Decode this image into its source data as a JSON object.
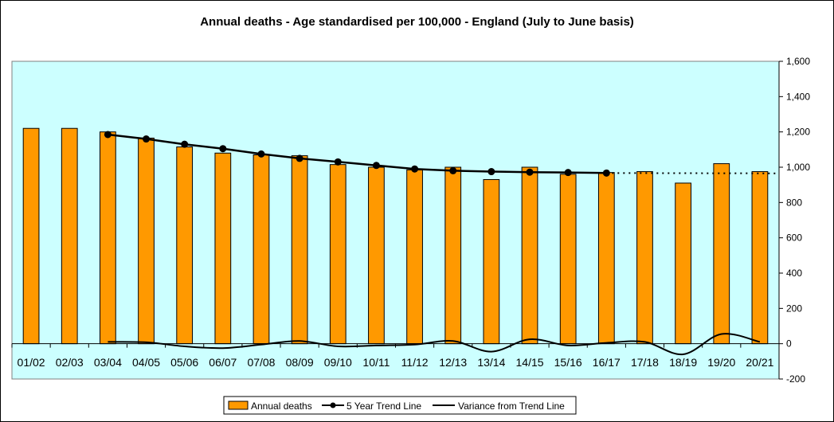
{
  "chart_data": {
    "type": "bar",
    "title": "Annual deaths - Age standardised per 100,000 - England (July to June basis)",
    "categories": [
      "01/02",
      "02/03",
      "03/04",
      "04/05",
      "05/06",
      "06/07",
      "07/08",
      "08/09",
      "09/10",
      "10/11",
      "11/12",
      "12/13",
      "13/14",
      "14/15",
      "15/16",
      "16/17",
      "17/18",
      "18/19",
      "19/20",
      "20/21"
    ],
    "ylim": [
      -200,
      1600
    ],
    "yticks": [
      -200,
      0,
      200,
      400,
      600,
      800,
      1000,
      1200,
      1400,
      1600
    ],
    "ytick_labels": [
      "-200",
      "0",
      "200",
      "400",
      "600",
      "800",
      "1,000",
      "1,200",
      "1,400",
      "1,600"
    ],
    "series": [
      {
        "name": "Annual deaths",
        "kind": "bar",
        "color": "#ff9900",
        "values": [
          1220,
          1220,
          1200,
          1165,
          1115,
          1080,
          1070,
          1065,
          1015,
          1000,
          985,
          1000,
          930,
          1000,
          960,
          970,
          975,
          910,
          1020,
          975
        ]
      },
      {
        "name": "5 Year Trend Line",
        "kind": "line-markers",
        "color": "#000000",
        "values": [
          null,
          null,
          1185,
          1160,
          1130,
          1105,
          1075,
          1050,
          1030,
          1010,
          990,
          980,
          975,
          972,
          970,
          967,
          null,
          null,
          null,
          null
        ]
      },
      {
        "name": "5 Year Trend Line projection",
        "kind": "dotted",
        "color": "#000000",
        "values": [
          null,
          null,
          null,
          null,
          null,
          null,
          null,
          null,
          null,
          null,
          null,
          null,
          null,
          null,
          null,
          967,
          965,
          965,
          965,
          965
        ]
      },
      {
        "name": "Variance from Trend Line",
        "kind": "smooth-line",
        "color": "#000000",
        "values": [
          null,
          null,
          10,
          8,
          -15,
          -25,
          -5,
          15,
          -15,
          -10,
          -5,
          15,
          -45,
          25,
          -10,
          5,
          10,
          -60,
          55,
          10
        ]
      }
    ],
    "legend": [
      "Annual deaths",
      "5 Year Trend Line",
      "Variance from Trend Line"
    ],
    "legend_position": "bottom",
    "plot_background": "#ccffff"
  }
}
